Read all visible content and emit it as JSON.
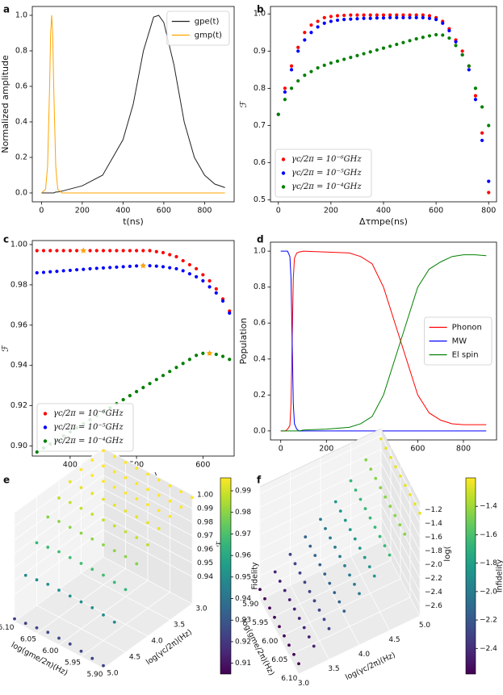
{
  "chart_data": [
    {
      "type": "line",
      "label": "a",
      "x": [
        0,
        20,
        30,
        40,
        45,
        50,
        55,
        60,
        70,
        80,
        100,
        200,
        300,
        400,
        450,
        500,
        550,
        575,
        600,
        650,
        700,
        750,
        800,
        850,
        900
      ],
      "series": [
        {
          "name": "gpe(t)",
          "color": "#222222",
          "values": [
            0,
            0,
            0,
            0,
            0,
            0,
            0,
            0,
            0.005,
            0.005,
            0.01,
            0.04,
            0.1,
            0.3,
            0.5,
            0.8,
            0.99,
            1.0,
            0.96,
            0.72,
            0.4,
            0.2,
            0.1,
            0.05,
            0.03
          ]
        },
        {
          "name": "gmp(t)",
          "color": "#ffa500",
          "values": [
            0,
            0.02,
            0.15,
            0.6,
            0.9,
            1.0,
            0.9,
            0.6,
            0.15,
            0.02,
            0,
            0,
            0,
            0,
            0,
            0,
            0,
            0,
            0,
            0,
            0,
            0,
            0,
            0,
            0
          ]
        }
      ],
      "xlabel": "t(ns)",
      "ylabel": "Normalized amplitude",
      "xlim": [
        -45,
        945
      ],
      "ylim": [
        -0.05,
        1.05
      ],
      "xticks": [
        0,
        200,
        400,
        600,
        800
      ],
      "yticks": [
        {
          "value": 0,
          "label": "0.0"
        },
        0.2,
        0.4,
        0.6,
        0.8,
        {
          "value": 1,
          "label": "1.0"
        }
      ],
      "legend": "upper right"
    },
    {
      "type": "scatter",
      "label": "b",
      "x": [
        0,
        25,
        50,
        75,
        100,
        125,
        150,
        175,
        200,
        225,
        250,
        275,
        300,
        325,
        350,
        375,
        400,
        425,
        450,
        475,
        500,
        525,
        550,
        575,
        600,
        625,
        650,
        675,
        700,
        725,
        750,
        775,
        800
      ],
      "series": [
        {
          "name": "γc/2π = 10⁻⁶GHz",
          "color": "#ff0000",
          "values": [
            0.73,
            0.8,
            0.86,
            0.91,
            0.95,
            0.97,
            0.98,
            0.99,
            0.993,
            0.995,
            0.996,
            0.997,
            0.997,
            0.997,
            0.997,
            0.997,
            0.997,
            0.997,
            0.997,
            0.997,
            0.997,
            0.997,
            0.997,
            0.995,
            0.99,
            0.98,
            0.96,
            0.93,
            0.9,
            0.86,
            0.78,
            0.68,
            0.52
          ]
        },
        {
          "name": "γc/2π = 10⁻⁵GHz",
          "color": "#0000ff",
          "values": [
            0.73,
            0.79,
            0.85,
            0.9,
            0.93,
            0.95,
            0.965,
            0.975,
            0.98,
            0.983,
            0.985,
            0.986,
            0.987,
            0.988,
            0.988,
            0.989,
            0.989,
            0.99,
            0.99,
            0.99,
            0.99,
            0.99,
            0.99,
            0.988,
            0.985,
            0.975,
            0.955,
            0.925,
            0.89,
            0.85,
            0.77,
            0.66,
            0.55
          ]
        },
        {
          "name": "γc/2π = 10⁻⁴GHz",
          "color": "#008000",
          "values": [
            0.73,
            0.77,
            0.8,
            0.82,
            0.835,
            0.845,
            0.855,
            0.862,
            0.868,
            0.873,
            0.878,
            0.883,
            0.888,
            0.893,
            0.898,
            0.903,
            0.908,
            0.913,
            0.918,
            0.923,
            0.928,
            0.933,
            0.937,
            0.941,
            0.944,
            0.943,
            0.935,
            0.915,
            0.89,
            0.86,
            0.8,
            0.75,
            0.7
          ]
        }
      ],
      "xlabel": "Δτmpe(ns)",
      "ylabel": "ℱ",
      "xlim": [
        -30,
        830
      ],
      "ylim": [
        0.495,
        1.02
      ],
      "xticks": [
        0,
        200,
        400,
        600,
        800
      ],
      "yticks": [
        0.5,
        0.6,
        0.7,
        0.8,
        0.9,
        {
          "value": 1,
          "label": "1.0"
        }
      ],
      "legend": "lower left"
    },
    {
      "type": "scatter",
      "label": "c",
      "x": [
        350,
        360,
        370,
        380,
        390,
        400,
        410,
        420,
        430,
        440,
        450,
        460,
        470,
        480,
        490,
        500,
        510,
        520,
        530,
        540,
        550,
        560,
        570,
        580,
        590,
        600,
        610,
        620,
        630,
        640
      ],
      "series": [
        {
          "name": "γc/2π = 10⁻⁶GHz",
          "color": "#ff0000",
          "values": [
            0.997,
            0.997,
            0.997,
            0.997,
            0.997,
            0.997,
            0.997,
            0.997,
            0.997,
            0.997,
            0.997,
            0.997,
            0.997,
            0.997,
            0.997,
            0.997,
            0.997,
            0.997,
            0.9965,
            0.996,
            0.995,
            0.994,
            0.992,
            0.99,
            0.988,
            0.985,
            0.982,
            0.978,
            0.973,
            0.967
          ]
        },
        {
          "name": "γc/2π = 10⁻⁵GHz",
          "color": "#0000ff",
          "values": [
            0.986,
            0.9862,
            0.9865,
            0.9867,
            0.987,
            0.9872,
            0.9875,
            0.9877,
            0.988,
            0.9882,
            0.9884,
            0.9886,
            0.9888,
            0.989,
            0.9892,
            0.9894,
            0.9895,
            0.9895,
            0.9893,
            0.989,
            0.9885,
            0.988,
            0.987,
            0.9855,
            0.984,
            0.982,
            0.979,
            0.976,
            0.972,
            0.966
          ]
        },
        {
          "name": "γc/2π = 10⁻⁴GHz",
          "color": "#008000",
          "values": [
            0.897,
            0.899,
            0.901,
            0.903,
            0.905,
            0.907,
            0.909,
            0.911,
            0.913,
            0.915,
            0.917,
            0.919,
            0.921,
            0.923,
            0.925,
            0.927,
            0.929,
            0.931,
            0.933,
            0.935,
            0.937,
            0.939,
            0.941,
            0.943,
            0.945,
            0.946,
            0.946,
            0.9455,
            0.9445,
            0.943
          ]
        }
      ],
      "highlights": {
        "x": [
          420,
          510,
          610
        ],
        "values": [
          0.997,
          0.9895,
          0.946
        ],
        "color": "#ffa500"
      },
      "xlabel": "Δτmpe(ns)",
      "ylabel": "ℱ",
      "xlim": [
        343,
        647
      ],
      "ylim": [
        0.895,
        1.002
      ],
      "xticks": [
        400,
        500,
        600
      ],
      "yticks": [
        {
          "value": 0.9,
          "label": "0.90"
        },
        0.92,
        0.94,
        0.96,
        0.98,
        {
          "value": 1,
          "label": "1.00"
        }
      ],
      "legend": "lower left"
    },
    {
      "type": "line",
      "label": "d",
      "x": [
        0,
        10,
        20,
        30,
        40,
        45,
        50,
        55,
        60,
        70,
        80,
        100,
        200,
        300,
        350,
        400,
        450,
        500,
        550,
        600,
        650,
        700,
        750,
        800,
        850,
        900
      ],
      "series": [
        {
          "name": "Phonon",
          "color": "#ff0000",
          "values": [
            0,
            0,
            0,
            0.01,
            0.03,
            0.15,
            0.5,
            0.85,
            0.96,
            0.99,
            0.995,
            1.0,
            0.995,
            0.99,
            0.97,
            0.93,
            0.8,
            0.6,
            0.4,
            0.2,
            0.1,
            0.06,
            0.04,
            0.035,
            0.035,
            0.035
          ]
        },
        {
          "name": "MW",
          "color": "#0000ff",
          "values": [
            1,
            1,
            1,
            1,
            0.97,
            0.85,
            0.5,
            0.15,
            0.04,
            0.01,
            0,
            0,
            0,
            0,
            0,
            0,
            0,
            0,
            0,
            0,
            0,
            0,
            0,
            0,
            0,
            0
          ]
        },
        {
          "name": "El spin",
          "color": "#008000",
          "values": [
            0,
            0,
            0,
            0,
            0,
            0,
            0,
            0,
            0,
            0,
            0,
            0.005,
            0.01,
            0.02,
            0.04,
            0.08,
            0.2,
            0.4,
            0.6,
            0.8,
            0.9,
            0.94,
            0.97,
            0.98,
            0.98,
            0.975
          ]
        }
      ],
      "xlabel": "t(ns)",
      "ylabel": "Population",
      "xlim": [
        -45,
        945
      ],
      "ylim": [
        -0.05,
        1.05
      ],
      "xticks": [
        0,
        200,
        400,
        600,
        800
      ],
      "yticks": [
        {
          "value": 0,
          "label": "0.0"
        },
        0.2,
        0.4,
        0.6,
        0.8,
        {
          "value": 1,
          "label": "1.0"
        }
      ],
      "legend": "center right"
    },
    {
      "type": "scatter3d",
      "label": "e",
      "x": [
        5.9,
        5.925,
        5.95,
        5.975,
        6.0,
        6.025,
        6.05,
        6.075,
        6.1
      ],
      "y": [
        3.0,
        3.25,
        3.5,
        3.75,
        4.0,
        4.25,
        4.5,
        4.75,
        5.0
      ],
      "z": [
        [
          0.998,
          0.998,
          0.998,
          0.998,
          0.998,
          0.998,
          0.998,
          0.998,
          0.998
        ],
        [
          0.997,
          0.997,
          0.997,
          0.997,
          0.997,
          0.997,
          0.997,
          0.997,
          0.997
        ],
        [
          0.996,
          0.996,
          0.996,
          0.996,
          0.996,
          0.996,
          0.996,
          0.996,
          0.996
        ],
        [
          0.993,
          0.993,
          0.993,
          0.993,
          0.993,
          0.993,
          0.993,
          0.993,
          0.993
        ],
        [
          0.987,
          0.988,
          0.988,
          0.988,
          0.988,
          0.988,
          0.988,
          0.988,
          0.987
        ],
        [
          0.979,
          0.98,
          0.98,
          0.98,
          0.98,
          0.98,
          0.98,
          0.98,
          0.979
        ],
        [
          0.966,
          0.967,
          0.968,
          0.968,
          0.968,
          0.968,
          0.968,
          0.967,
          0.966
        ],
        [
          0.948,
          0.949,
          0.95,
          0.95,
          0.95,
          0.95,
          0.95,
          0.949,
          0.948
        ],
        [
          0.922,
          0.923,
          0.924,
          0.925,
          0.925,
          0.925,
          0.924,
          0.923,
          0.922
        ]
      ],
      "xlabel": "log(gme/2π)(Hz)",
      "ylabel": "log(γc/2π)(Hz)",
      "zlabel": "ℱ",
      "xlim": [
        5.9,
        6.1
      ],
      "ylim": [
        3.0,
        5.0
      ],
      "zlim": [
        0.92,
        1.0
      ],
      "xticks": [
        {
          "value": 5.9,
          "label": "5.90"
        },
        5.95,
        {
          "value": 6,
          "label": "6.00"
        },
        6.05,
        {
          "value": 6.1,
          "label": "6.10"
        }
      ],
      "yticks": [
        {
          "value": 3,
          "label": "3.0"
        },
        3.5,
        {
          "value": 4,
          "label": "4.0"
        },
        4.5,
        {
          "value": 5,
          "label": "5.0"
        }
      ],
      "zticks": [
        0.94,
        0.95,
        0.96,
        0.97,
        0.98,
        0.99,
        {
          "value": 1,
          "label": "1.00"
        }
      ],
      "colormap": "viridis",
      "colorbar": {
        "label": "Fidelity",
        "lim": [
          0.905,
          0.996
        ],
        "ticks": [
          0.91,
          0.92,
          0.93,
          0.94,
          0.95,
          0.96,
          0.97,
          0.98,
          0.99
        ]
      }
    },
    {
      "type": "scatter3d",
      "label": "f",
      "x": [
        5.9,
        5.925,
        5.95,
        5.975,
        6.0,
        6.025,
        6.05,
        6.075,
        6.1
      ],
      "y": [
        3.0,
        3.25,
        3.5,
        3.75,
        4.0,
        4.25,
        4.5,
        4.75,
        5.0
      ],
      "z": [
        [
          -2.6,
          -2.6,
          -2.6,
          -2.6,
          -2.6,
          -2.6,
          -2.6,
          -2.6,
          -2.6
        ],
        [
          -2.45,
          -2.45,
          -2.45,
          -2.45,
          -2.45,
          -2.45,
          -2.45,
          -2.45,
          -2.45
        ],
        [
          -2.3,
          -2.3,
          -2.3,
          -2.3,
          -2.3,
          -2.3,
          -2.3,
          -2.3,
          -2.3
        ],
        [
          -2.15,
          -2.15,
          -2.15,
          -2.15,
          -2.15,
          -2.15,
          -2.15,
          -2.15,
          -2.15
        ],
        [
          -2.0,
          -2.0,
          -2.0,
          -2.0,
          -2.0,
          -2.0,
          -2.0,
          -2.0,
          -2.0
        ],
        [
          -1.85,
          -1.85,
          -1.85,
          -1.85,
          -1.85,
          -1.85,
          -1.85,
          -1.85,
          -1.85
        ],
        [
          -1.65,
          -1.65,
          -1.65,
          -1.65,
          -1.65,
          -1.65,
          -1.65,
          -1.65,
          -1.65
        ],
        [
          -1.45,
          -1.45,
          -1.45,
          -1.45,
          -1.45,
          -1.45,
          -1.45,
          -1.45,
          -1.45
        ],
        [
          -1.25,
          -1.25,
          -1.25,
          -1.25,
          -1.25,
          -1.25,
          -1.25,
          -1.25,
          -1.25
        ]
      ],
      "xlabel": "log(gme/2π)(Hz)",
      "ylabel": "log(γc/2π)(Hz)",
      "zlabel": "log(",
      "xlim": [
        5.9,
        6.1
      ],
      "ylim": [
        3.0,
        5.0
      ],
      "zlim": [
        -2.75,
        -1.1
      ],
      "xticks": [
        {
          "value": 5.9,
          "label": "5.90"
        },
        5.95,
        {
          "value": 6,
          "label": "6.00"
        },
        6.05,
        {
          "value": 6.1,
          "label": "6.10"
        }
      ],
      "yticks": [
        {
          "value": 3,
          "label": "3.0"
        },
        3.5,
        {
          "value": 4,
          "label": "4.0"
        },
        4.5,
        {
          "value": 5,
          "label": "5.0"
        }
      ],
      "zticks": [
        {
          "value": -2.6,
          "label": "−2.6"
        },
        {
          "value": -2.4,
          "label": "−2.4"
        },
        {
          "value": -2.2,
          "label": "−2.2"
        },
        {
          "value": -2.0,
          "label": "−2.0"
        },
        {
          "value": -1.8,
          "label": "−1.8"
        },
        {
          "value": -1.6,
          "label": "−1.6"
        },
        {
          "value": -1.4,
          "label": "−1.4"
        },
        {
          "value": -1.2,
          "label": "−1.2"
        }
      ],
      "colormap": "viridis",
      "colorbar": {
        "label": "Infidelity",
        "lim": [
          -2.58,
          -1.2
        ],
        "ticks": [
          {
            "value": -2.4,
            "label": "−2.4"
          },
          {
            "value": -2.2,
            "label": "−2.2"
          },
          {
            "value": -2.0,
            "label": "−2.0"
          },
          {
            "value": -1.8,
            "label": "−1.8"
          },
          {
            "value": -1.6,
            "label": "−1.6"
          },
          {
            "value": -1.4,
            "label": "−1.4"
          }
        ]
      }
    }
  ]
}
